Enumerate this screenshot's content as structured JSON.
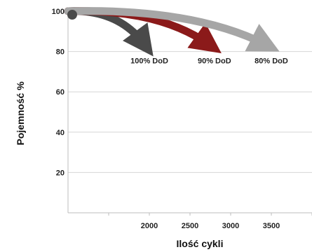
{
  "chart_data": {
    "type": "line",
    "title": "",
    "xlabel": "Ilość cykli",
    "ylabel": "Pojemność %",
    "x_ticks": [
      2000,
      2500,
      3000,
      3500
    ],
    "y_ticks": [
      20,
      40,
      60,
      80,
      100
    ],
    "xlim": [
      1000,
      4000
    ],
    "ylim": [
      0,
      100
    ],
    "grid": "horizontal",
    "series": [
      {
        "name": "100% DoD",
        "color": "#4a4a4a",
        "x": [
          1000,
          2000
        ],
        "y": [
          100,
          80
        ]
      },
      {
        "name": "90% DoD",
        "color": "#8b1a1a",
        "x": [
          1000,
          2800
        ],
        "y": [
          100,
          80
        ]
      },
      {
        "name": "80% DoD",
        "color": "#a6a6a6",
        "x": [
          1000,
          3500
        ],
        "y": [
          100,
          80
        ]
      }
    ]
  }
}
